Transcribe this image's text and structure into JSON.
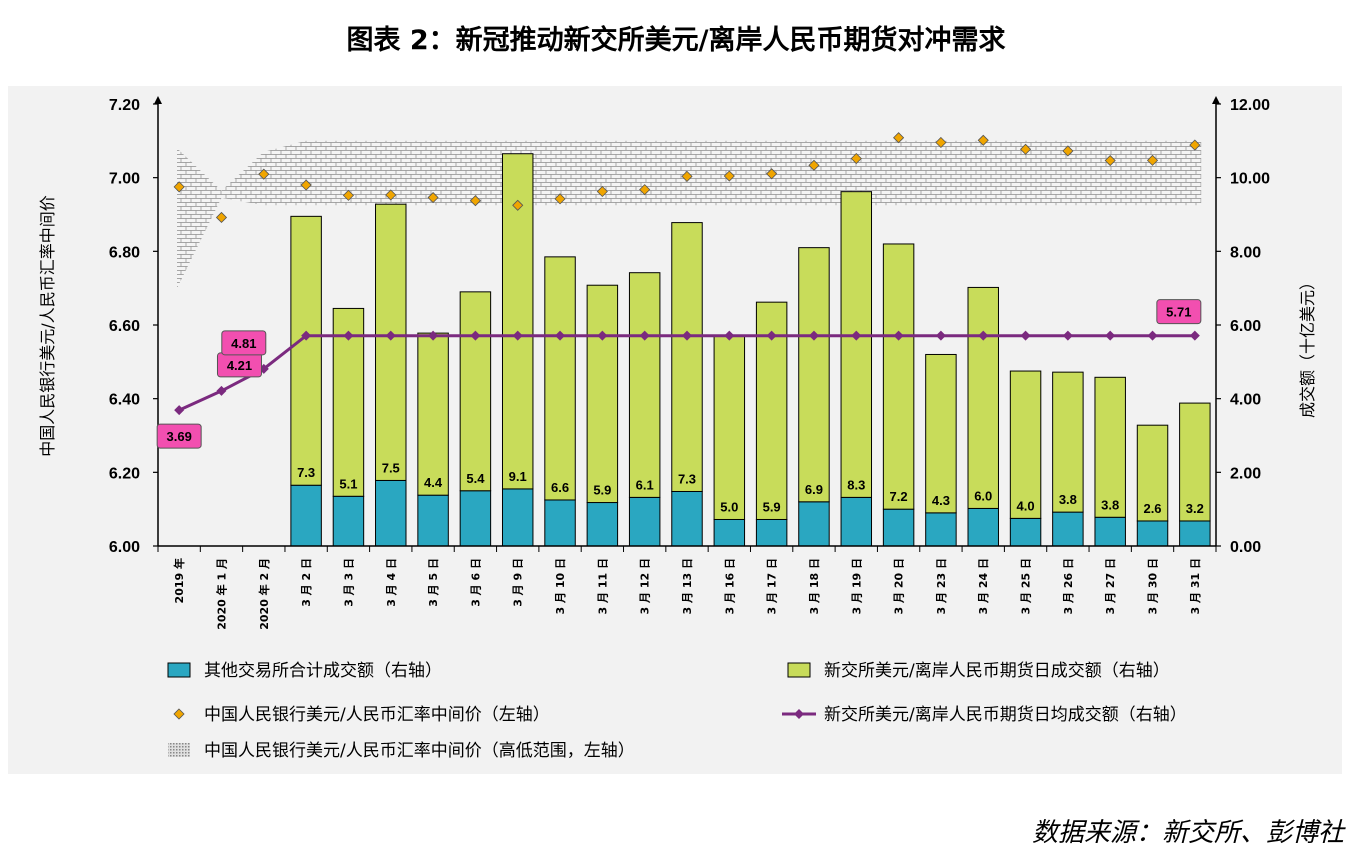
{
  "title": "图表 2：新冠推动新交所美元/离岸人民币期货对冲需求",
  "source": "数据来源：新交所、彭博社",
  "chart_data": {
    "type": "bar",
    "categories": [
      "2019 年",
      "2020 年 1 月",
      "2020 年 2 月",
      "3 月 2 日",
      "3 月 3 日",
      "3 月 4 日",
      "3 月 5 日",
      "3 月 6 日",
      "3 月 9 日",
      "3 月 10 日",
      "3 月 11 日",
      "3 月 12 日",
      "3 月 13 日",
      "3 月 16 日",
      "3 月 17 日",
      "3 月 18 日",
      "3 月 19 日",
      "3 月 20 日",
      "3 月 23 日",
      "3 月 24 日",
      "3 月 25 日",
      "3 月 26 日",
      "3 月 27 日",
      "3 月 30 日",
      "3 月 31 日"
    ],
    "y_left": {
      "label": "中国人民银行美元/人民币汇率中间价",
      "ylim": [
        6.0,
        7.2
      ],
      "ticks": [
        "6.00",
        "6.20",
        "6.40",
        "6.60",
        "6.80",
        "7.00",
        "7.20"
      ]
    },
    "y_right": {
      "label": "成交额（十亿美元）",
      "ylim": [
        0,
        12
      ],
      "ticks": [
        "0.00",
        "2.00",
        "4.00",
        "6.00",
        "8.00",
        "10.00",
        "12.00"
      ]
    },
    "series": [
      {
        "name": "其他交易所合计成交额（右轴）",
        "axis": "right",
        "kind": "bar",
        "color": "#2aa7c1",
        "values": [
          null,
          null,
          null,
          1.65,
          1.35,
          1.78,
          1.38,
          1.5,
          1.55,
          1.25,
          1.18,
          1.32,
          1.48,
          0.72,
          0.72,
          1.2,
          1.32,
          1.0,
          0.9,
          1.02,
          0.75,
          0.92,
          0.78,
          0.68,
          0.68
        ]
      },
      {
        "name": "新交所美元/离岸人民币期货日成交额（右轴）",
        "axis": "right",
        "kind": "bar",
        "color": "#c8dc5a",
        "values": [
          null,
          null,
          null,
          7.3,
          5.1,
          7.5,
          4.4,
          5.4,
          9.1,
          6.6,
          5.9,
          6.1,
          7.3,
          5.0,
          5.9,
          6.9,
          8.3,
          7.2,
          4.3,
          6.0,
          4.0,
          3.8,
          3.8,
          2.6,
          3.2
        ],
        "labels": [
          "",
          "",
          "",
          "7.3",
          "5.1",
          "7.5",
          "4.4",
          "5.4",
          "9.1",
          "6.6",
          "5.9",
          "6.1",
          "7.3",
          "5.0",
          "5.9",
          "6.9",
          "8.3",
          "7.2",
          "4.3",
          "6.0",
          "4.0",
          "3.8",
          "3.8",
          "2.6",
          "3.2"
        ]
      },
      {
        "name": "中国人民银行美元/人民币汇率中间价（左轴）",
        "axis": "left",
        "kind": "scatter",
        "color": "#f0a500",
        "values": [
          6.975,
          6.892,
          7.0095,
          6.98,
          6.952,
          6.953,
          6.946,
          6.9375,
          6.925,
          6.9425,
          6.9625,
          6.9675,
          7.0035,
          7.0045,
          7.0105,
          7.0335,
          7.052,
          7.1085,
          7.0955,
          7.1015,
          7.077,
          7.0725,
          7.0465,
          7.047,
          7.0885
        ]
      },
      {
        "name": "新交所美元/离岸人民币期货日均成交额（右轴）",
        "axis": "right",
        "kind": "line",
        "color": "#7b2a7f",
        "values": [
          3.69,
          4.21,
          4.81,
          5.71,
          5.71,
          5.71,
          5.71,
          5.71,
          5.71,
          5.71,
          5.71,
          5.71,
          5.71,
          5.71,
          5.71,
          5.71,
          5.71,
          5.71,
          5.71,
          5.71,
          5.71,
          5.71,
          5.71,
          5.71,
          5.71
        ],
        "labels": [
          "3.69",
          "4.21",
          "4.81",
          "",
          "",
          "",
          "",
          "",
          "",
          "",
          "",
          "",
          "",
          "",
          "",
          "",
          "",
          "",
          "",
          "",
          "",
          "",
          "",
          "",
          "5.71"
        ]
      },
      {
        "name": "中国人民银行美元/人民币汇率中间价（高低范围，左轴）",
        "axis": "left",
        "kind": "range",
        "low": [
          6.7,
          6.945,
          6.925,
          6.925,
          6.925,
          6.925,
          6.925,
          6.925,
          6.925,
          6.925,
          6.925,
          6.925,
          6.925,
          6.925,
          6.925,
          6.925,
          6.925,
          6.925,
          6.925,
          6.925,
          6.925,
          6.925,
          6.925,
          6.925,
          6.925
        ],
        "high": [
          7.08,
          6.965,
          7.07,
          7.1,
          7.1,
          7.1,
          7.1,
          7.1,
          7.1,
          7.1,
          7.1,
          7.1,
          7.1,
          7.1,
          7.1,
          7.1,
          7.1,
          7.1,
          7.1,
          7.1,
          7.1,
          7.1,
          7.1,
          7.1,
          7.1
        ]
      }
    ],
    "legend": [
      {
        "symbol": "bar-blue",
        "label": "其他交易所合计成交额（右轴）"
      },
      {
        "symbol": "bar-green",
        "label": "新交所美元/离岸人民币期货日成交额（右轴）"
      },
      {
        "symbol": "diamond",
        "label": "中国人民银行美元/人民币汇率中间价（左轴）"
      },
      {
        "symbol": "line",
        "label": "新交所美元/离岸人民币期货日均成交额（右轴）"
      },
      {
        "symbol": "pattern",
        "label": "中国人民银行美元/人民币汇率中间价（高低范围，左轴）"
      }
    ],
    "legend_placement": "bottom",
    "grid": false
  }
}
